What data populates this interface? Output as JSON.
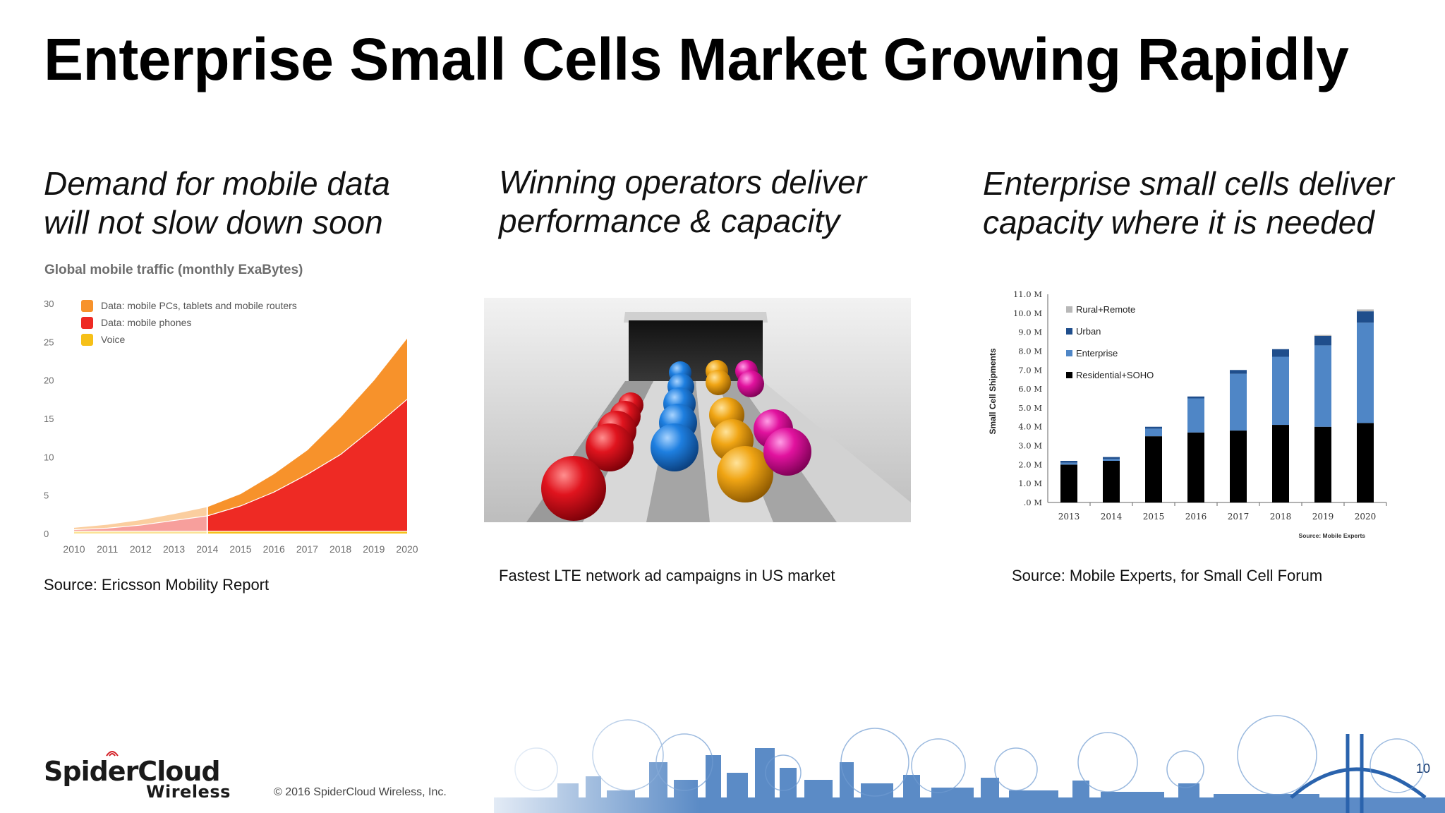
{
  "slide": {
    "title": "Enterprise Small Cells Market Growing Rapidly",
    "columns": [
      {
        "heading_line1": "Demand for mobile data",
        "heading_line2": "will not slow down soon",
        "source": "Source: Ericsson Mobility Report"
      },
      {
        "heading_line1": "Winning operators deliver",
        "heading_line2": "performance & capacity",
        "caption": "Fastest LTE network ad campaigns in US market"
      },
      {
        "heading_line1": "Enterprise small cells deliver",
        "heading_line2": "capacity where it is needed",
        "source": "Source: Mobile Experts, for Small Cell Forum"
      }
    ],
    "footer": {
      "logo_main": "SpiderCloud",
      "logo_sub": "Wireless",
      "copyright": "© 2016 SpiderCloud Wireless, Inc.",
      "page_number": "10"
    }
  },
  "colors": {
    "voice": "#f6c018",
    "phones": "#ee2a24",
    "pcs": "#f7922b",
    "rural": "#b8b8b8",
    "urban": "#1f4e8c",
    "enterprise": "#4f86c6",
    "residential": "#000000",
    "footer_blue": "#2a63ad"
  },
  "chart_data": [
    {
      "type": "area",
      "stacked": true,
      "title": "Global mobile traffic (monthly ExaBytes)",
      "x": [
        "2010",
        "2011",
        "2012",
        "2013",
        "2014",
        "2015",
        "2016",
        "2017",
        "2018",
        "2019",
        "2020"
      ],
      "ylim": [
        0,
        30
      ],
      "yticks": [
        "0",
        "5",
        "10",
        "15",
        "20",
        "25",
        "30"
      ],
      "forecast_from": "2014",
      "legend_position": "top-left",
      "series": [
        {
          "name": "Voice",
          "color_key": "voice",
          "values": [
            0.3,
            0.3,
            0.3,
            0.3,
            0.3,
            0.3,
            0.3,
            0.3,
            0.3,
            0.3,
            0.3
          ]
        },
        {
          "name": "Data: mobile phones",
          "color_key": "phones",
          "values": [
            0.2,
            0.4,
            0.8,
            1.4,
            2.0,
            3.3,
            5.1,
            7.4,
            10.0,
            13.5,
            17.2
          ]
        },
        {
          "name": "Data: mobile PCs, tablets and mobile routers",
          "color_key": "pcs",
          "values": [
            0.3,
            0.5,
            0.7,
            0.9,
            1.2,
            1.6,
            2.4,
            3.2,
            4.9,
            6.2,
            8.0
          ]
        }
      ],
      "legend_order": [
        "Data: mobile PCs, tablets and mobile routers",
        "Data: mobile phones",
        "Voice"
      ]
    },
    {
      "type": "bar",
      "stacked": true,
      "categories": [
        "2013",
        "2014",
        "2015",
        "2016",
        "2017",
        "2018",
        "2019",
        "2020"
      ],
      "ylabel": "Small Cell Shipments",
      "ylim": [
        0,
        11
      ],
      "yticks": [
        ".0 M",
        "1.0 M",
        "2.0 M",
        "3.0 M",
        "4.0 M",
        "5.0 M",
        "6.0 M",
        "7.0 M",
        "8.0 M",
        "9.0 M",
        "10.0 M",
        "11.0 M"
      ],
      "note": "Source: Mobile Experts",
      "legend_position": "top-left",
      "series": [
        {
          "name": "Residential+SOHO",
          "color_key": "residential",
          "values": [
            2.0,
            2.2,
            3.5,
            3.7,
            3.8,
            4.1,
            4.0,
            4.2
          ]
        },
        {
          "name": "Enterprise",
          "color_key": "enterprise",
          "values": [
            0.1,
            0.1,
            0.4,
            1.8,
            3.0,
            3.6,
            4.3,
            5.3
          ]
        },
        {
          "name": "Urban",
          "color_key": "urban",
          "values": [
            0.1,
            0.1,
            0.1,
            0.1,
            0.2,
            0.4,
            0.5,
            0.6
          ]
        },
        {
          "name": "Rural+Remote",
          "color_key": "rural",
          "values": [
            0,
            0,
            0,
            0,
            0,
            0,
            0.05,
            0.1
          ]
        }
      ],
      "legend_order": [
        "Rural+Remote",
        "Urban",
        "Enterprise",
        "Residential+SOHO"
      ]
    }
  ]
}
